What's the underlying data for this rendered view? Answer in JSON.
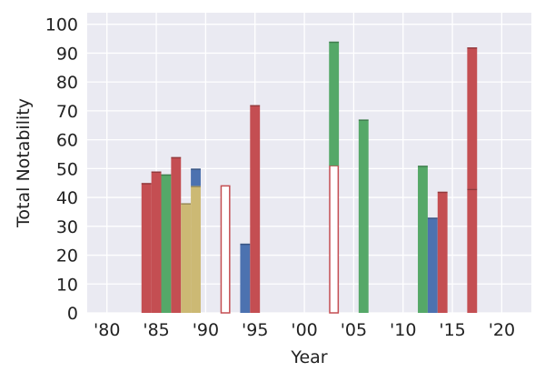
{
  "chart_data": {
    "type": "bar",
    "xlabel": "Year",
    "ylabel": "Total Notability",
    "xlim": [
      1978,
      2023
    ],
    "ylim": [
      0,
      104
    ],
    "grid": true,
    "background": "#EAEAF2",
    "xticks": [
      {
        "value": 1980,
        "label": "'80"
      },
      {
        "value": 1985,
        "label": "'85"
      },
      {
        "value": 1990,
        "label": "'90"
      },
      {
        "value": 1995,
        "label": "'95"
      },
      {
        "value": 2000,
        "label": "'00"
      },
      {
        "value": 2005,
        "label": "'05"
      },
      {
        "value": 2010,
        "label": "'10"
      },
      {
        "value": 2015,
        "label": "'15"
      },
      {
        "value": 2020,
        "label": "'20"
      }
    ],
    "yticks": [
      0,
      10,
      20,
      30,
      40,
      50,
      60,
      70,
      80,
      90,
      100
    ],
    "colors": {
      "red": "#C44E52",
      "green": "#55A868",
      "blue": "#4C72B0",
      "yellow": "#CCB974"
    },
    "bars": [
      {
        "x": 1984,
        "segments": [
          {
            "from": 0,
            "to": 45,
            "color": "red"
          }
        ]
      },
      {
        "x": 1985,
        "segments": [
          {
            "from": 0,
            "to": 49,
            "color": "red"
          }
        ]
      },
      {
        "x": 1986,
        "segments": [
          {
            "from": 0,
            "to": 48,
            "color": "green"
          }
        ]
      },
      {
        "x": 1987,
        "segments": [
          {
            "from": 0,
            "to": 54,
            "color": "red"
          }
        ]
      },
      {
        "x": 1988,
        "segments": [
          {
            "from": 0,
            "to": 38,
            "color": "yellow"
          }
        ]
      },
      {
        "x": 1989,
        "segments": [
          {
            "from": 0,
            "to": 44,
            "color": "yellow"
          },
          {
            "from": 44,
            "to": 50,
            "color": "blue"
          }
        ]
      },
      {
        "x": 1992,
        "hollow": true,
        "segments": [
          {
            "from": 0,
            "to": 44,
            "color": "red"
          }
        ]
      },
      {
        "x": 1994,
        "segments": [
          {
            "from": 0,
            "to": 24,
            "color": "blue"
          }
        ]
      },
      {
        "x": 1995,
        "segments": [
          {
            "from": 0,
            "to": 72,
            "color": "red"
          }
        ]
      },
      {
        "x": 2003,
        "hollow": true,
        "segments": [
          {
            "from": 0,
            "to": 51,
            "color": "red"
          }
        ]
      },
      {
        "x": 2003,
        "segments": [
          {
            "from": 51,
            "to": 94,
            "color": "green"
          }
        ]
      },
      {
        "x": 2006,
        "segments": [
          {
            "from": 0,
            "to": 67,
            "color": "green"
          }
        ]
      },
      {
        "x": 2012,
        "segments": [
          {
            "from": 0,
            "to": 51,
            "color": "green"
          }
        ]
      },
      {
        "x": 2013,
        "segments": [
          {
            "from": 0,
            "to": 33,
            "color": "blue"
          }
        ]
      },
      {
        "x": 2014,
        "segments": [
          {
            "from": 0,
            "to": 42,
            "color": "red"
          }
        ]
      },
      {
        "x": 2017,
        "segments": [
          {
            "from": 0,
            "to": 43,
            "color": "red"
          },
          {
            "from": 43,
            "to": 92,
            "color": "red"
          }
        ]
      }
    ]
  }
}
